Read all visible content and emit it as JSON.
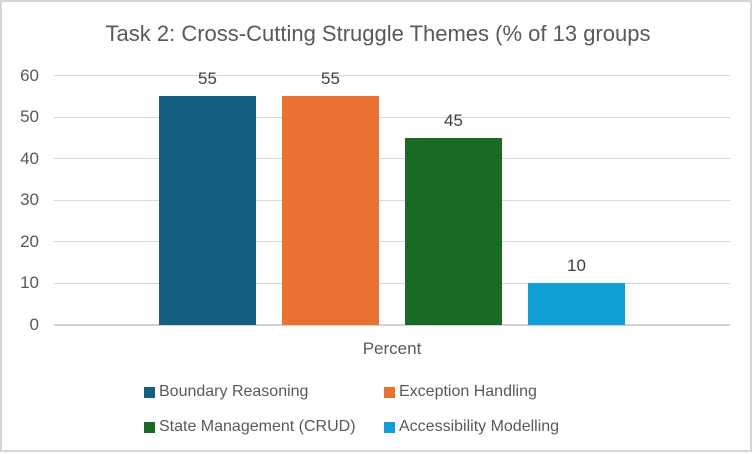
{
  "chart_data": {
    "type": "bar",
    "title": "Task 2: Cross-Cutting Struggle Themes (% of 13 groups",
    "categories": [
      "Boundary Reasoning",
      "Exception Handling",
      "State Management (CRUD)",
      "Accessibility Modelling"
    ],
    "values": [
      55,
      55,
      45,
      10
    ],
    "data_labels": [
      "55",
      "55",
      "45",
      "10"
    ],
    "series_colors": [
      "#156082",
      "#E97132",
      "#196B24",
      "#0F9ED5"
    ],
    "xlabel": "Percent",
    "ylabel": "",
    "ylim": [
      0,
      60
    ],
    "ytick_step": 10,
    "ytick_labels": [
      "0",
      "10",
      "20",
      "30",
      "40",
      "50",
      "60"
    ],
    "grid": true,
    "legend_position": "bottom",
    "legend_columns": 2
  },
  "colors": {
    "gridline": "#d9d9d9",
    "axis_line": "#d2d2d2",
    "title_text": "#595959",
    "tick_text": "#595959",
    "data_label_text": "#404040",
    "legend_text": "#595959",
    "background": "#ffffff",
    "border": "#d6d6d6"
  }
}
